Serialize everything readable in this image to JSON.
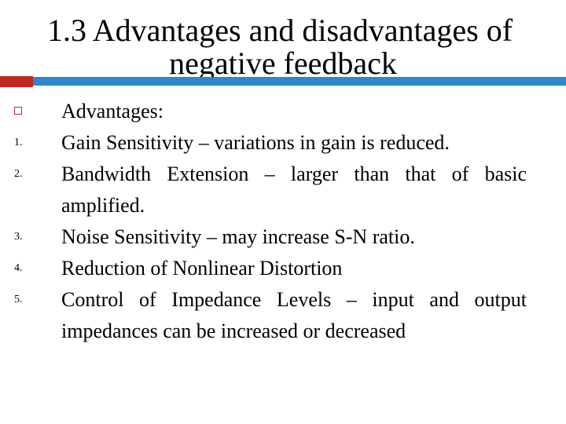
{
  "slide": {
    "title_line1": "1.3 Advantages and disadvantages of",
    "title_line2": "negative feedback",
    "heading": "Advantages:",
    "items": [
      {
        "number": "1.",
        "text": "Gain Sensitivity – variations in gain is reduced."
      },
      {
        "number": "2.",
        "text": "Bandwidth Extension – larger than that of basic amplified."
      },
      {
        "number": "3.",
        "text": "Noise Sensitivity – may increase S-N ratio."
      },
      {
        "number": "4.",
        "text": "Reduction of Nonlinear Distortion"
      },
      {
        "number": "5.",
        "text": "Control of Impedance Levels – input and output impedances can be increased or decreased"
      }
    ]
  },
  "colors": {
    "accent_red": "#c0281e",
    "accent_blue": "#2f86c8"
  }
}
